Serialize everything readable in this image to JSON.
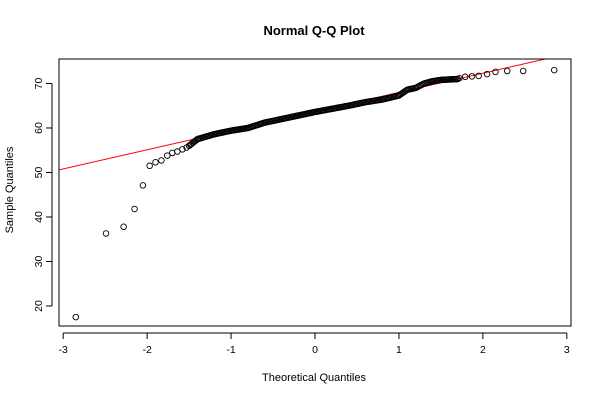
{
  "chart_data": {
    "type": "scatter",
    "title": "Normal Q-Q Plot",
    "xlabel": "Theoretical Quantiles",
    "ylabel": "Sample Quantiles",
    "xlim": [
      -3.05,
      3.05
    ],
    "ylim": [
      15.5,
      75.5
    ],
    "x_ticks": [
      -3,
      -2,
      -1,
      0,
      1,
      2,
      3
    ],
    "y_ticks": [
      20,
      30,
      40,
      50,
      60,
      70
    ],
    "grid": false,
    "legend": "none",
    "point_style": "open-circle",
    "point_color": "#000000",
    "reference_line": {
      "color": "#ff0000",
      "intercept": 63.7,
      "slope": 4.3
    },
    "tail_points": [
      {
        "x": -2.85,
        "y": 17.5
      },
      {
        "x": -2.49,
        "y": 36.3
      },
      {
        "x": -2.28,
        "y": 37.8
      },
      {
        "x": -2.15,
        "y": 41.8
      },
      {
        "x": -2.05,
        "y": 47.1
      },
      {
        "x": -1.97,
        "y": 51.5
      },
      {
        "x": -1.9,
        "y": 52.3
      },
      {
        "x": -1.83,
        "y": 52.7
      },
      {
        "x": -1.76,
        "y": 53.8
      },
      {
        "x": -1.7,
        "y": 54.4
      },
      {
        "x": -1.64,
        "y": 54.7
      },
      {
        "x": -1.58,
        "y": 55.2
      },
      {
        "x": -1.53,
        "y": 55.6
      },
      {
        "x": 1.72,
        "y": 71.2
      },
      {
        "x": 1.79,
        "y": 71.5
      },
      {
        "x": 1.87,
        "y": 71.6
      },
      {
        "x": 1.95,
        "y": 71.7
      },
      {
        "x": 2.05,
        "y": 72.1
      },
      {
        "x": 2.15,
        "y": 72.6
      },
      {
        "x": 2.29,
        "y": 72.8
      },
      {
        "x": 2.48,
        "y": 72.8
      },
      {
        "x": 2.85,
        "y": 73.0
      }
    ],
    "body_trace": [
      {
        "x": -1.5,
        "y": 56.0
      },
      {
        "x": -1.4,
        "y": 57.5
      },
      {
        "x": -1.2,
        "y": 58.6
      },
      {
        "x": -1.0,
        "y": 59.4
      },
      {
        "x": -0.8,
        "y": 60.0
      },
      {
        "x": -0.6,
        "y": 61.2
      },
      {
        "x": -0.4,
        "y": 62.0
      },
      {
        "x": -0.2,
        "y": 62.8
      },
      {
        "x": 0.0,
        "y": 63.6
      },
      {
        "x": 0.2,
        "y": 64.3
      },
      {
        "x": 0.4,
        "y": 65.0
      },
      {
        "x": 0.6,
        "y": 65.8
      },
      {
        "x": 0.8,
        "y": 66.4
      },
      {
        "x": 1.0,
        "y": 67.3
      },
      {
        "x": 1.1,
        "y": 68.6
      },
      {
        "x": 1.2,
        "y": 69.0
      },
      {
        "x": 1.3,
        "y": 70.0
      },
      {
        "x": 1.4,
        "y": 70.5
      },
      {
        "x": 1.5,
        "y": 70.8
      },
      {
        "x": 1.7,
        "y": 71.0
      }
    ]
  }
}
